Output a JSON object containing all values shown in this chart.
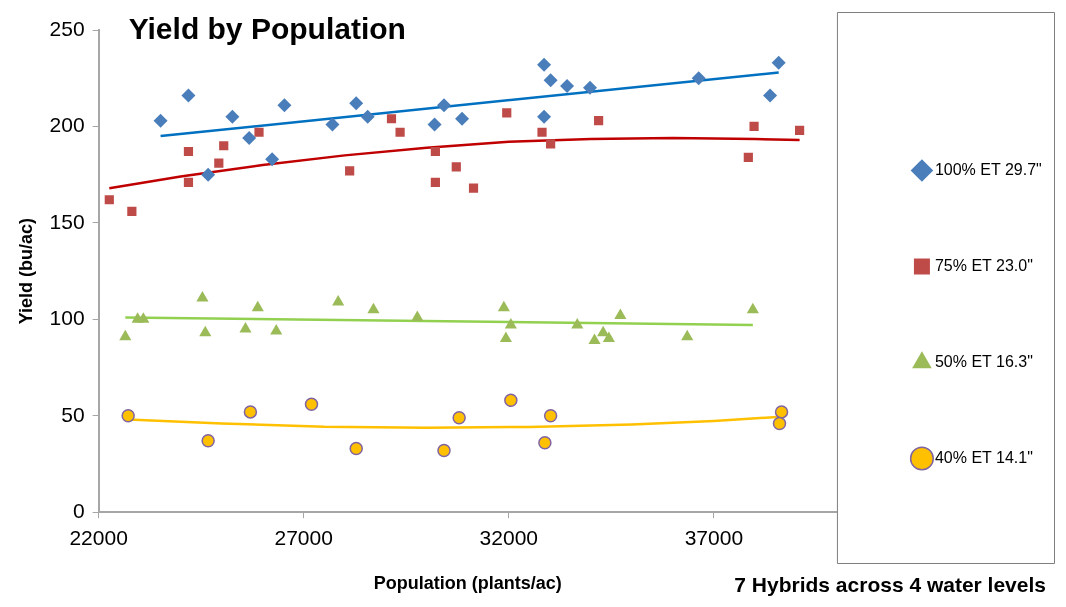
{
  "chart_data": {
    "type": "scatter",
    "title": "Yield by Population",
    "xlabel": "Population (plants/ac)",
    "ylabel": "Yield (bu/ac)",
    "annotations": [
      "7 Hybrids across 4 water levels"
    ],
    "xlim": [
      22000,
      40000
    ],
    "xticks": [
      22000,
      27000,
      32000,
      37000
    ],
    "ylim": [
      0,
      250
    ],
    "yticks": [
      0,
      50,
      100,
      150,
      200,
      250
    ],
    "grid": false,
    "legend": "right",
    "series": [
      {
        "name": "100% ET 29.7\"",
        "color": "#4a7ebb",
        "marker": "diamond",
        "x": [
          23510,
          24190,
          24670,
          25260,
          25670,
          26230,
          26530,
          27700,
          28280,
          28560,
          30190,
          30420,
          30860,
          32860,
          33020,
          33420,
          33980,
          32860,
          36630,
          38370,
          38580
        ],
        "values": [
          203,
          216,
          175,
          205,
          194,
          183,
          211,
          201,
          212,
          205,
          201,
          211,
          204,
          232,
          224,
          221,
          220,
          205,
          225,
          216,
          233
        ]
      },
      {
        "name": "75% ET 23.0\"",
        "color": "#be4b48",
        "marker": "square",
        "x": [
          22260,
          22810,
          24190,
          24190,
          24930,
          25050,
          25910,
          28120,
          29140,
          29350,
          30210,
          30210,
          30720,
          31140,
          31950,
          32810,
          33020,
          34190,
          37980,
          37840,
          39090
        ],
        "values": [
          162,
          156,
          187,
          171,
          181,
          190,
          197,
          177,
          204,
          197,
          187,
          171,
          179,
          168,
          207,
          197,
          191,
          203,
          200,
          184,
          198
        ]
      },
      {
        "name": "50% ET 16.3\"",
        "color": "#9bbb59",
        "marker": "triangle",
        "x": [
          22650,
          22950,
          23090,
          24530,
          24600,
          25580,
          25880,
          26330,
          27840,
          28700,
          29770,
          31880,
          31930,
          32050,
          33670,
          34090,
          34300,
          34440,
          34720,
          36350,
          37950
        ],
        "values": [
          91,
          100,
          100,
          111,
          93,
          95,
          106,
          94,
          109,
          105,
          101,
          106,
          90,
          97,
          97,
          89,
          93,
          90,
          102,
          91,
          105
        ]
      },
      {
        "name": "40% ET 14.1\"",
        "color": "#ffc000",
        "marker": "circle",
        "x": [
          22720,
          24670,
          25700,
          27190,
          28280,
          30420,
          30790,
          32050,
          32880,
          33020,
          38650,
          38600
        ],
        "values": [
          50,
          37,
          52,
          56,
          33,
          32,
          49,
          58,
          36,
          50,
          52,
          46
        ]
      },
      {
        "type": "line",
        "color": "#0070c0",
        "marker": "none",
        "x": [
          23510,
          38580
        ],
        "values": [
          195,
          228
        ]
      },
      {
        "type": "line",
        "color": "#c00000",
        "marker": "none",
        "x": [
          22260,
          24000,
          26000,
          28000,
          30000,
          32000,
          34000,
          36000,
          38000,
          39090
        ],
        "values": [
          168,
          174,
          180,
          185,
          189,
          192,
          193.5,
          194,
          193.5,
          193
        ]
      },
      {
        "type": "line",
        "color": "#92d050",
        "marker": "none",
        "x": [
          22650,
          37950
        ],
        "values": [
          101,
          97
        ]
      },
      {
        "type": "line",
        "color": "#ffc000",
        "marker": "none",
        "x": [
          22720,
          25000,
          27500,
          30000,
          32500,
          35000,
          37000,
          38630
        ],
        "values": [
          48,
          46,
          44.3,
          43.8,
          44.2,
          45.5,
          47.3,
          49.5
        ]
      }
    ]
  }
}
